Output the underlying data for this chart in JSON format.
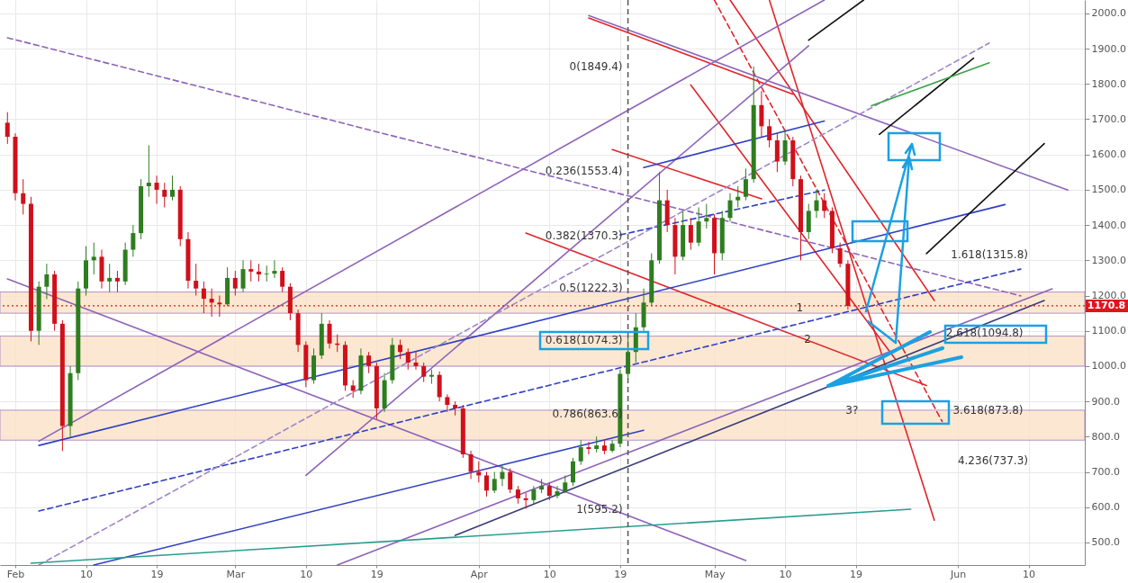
{
  "chart_data": {
    "type": "candlestick",
    "x": [
      "--01-31",
      "--02-01",
      "--02-02",
      "--02-03",
      "--02-04",
      "--02-05",
      "--02-06",
      "--02-07",
      "--02-08",
      "--02-09",
      "--02-10",
      "--02-11",
      "--02-12",
      "--02-13",
      "--02-14",
      "--02-15",
      "--02-16",
      "--02-17",
      "--02-18",
      "--02-19",
      "--02-20",
      "--02-21",
      "--02-22",
      "--02-23",
      "--02-24",
      "--02-25",
      "--02-26",
      "--02-27",
      "--02-28",
      "--03-01",
      "--03-02",
      "--03-03",
      "--03-04",
      "--03-05",
      "--03-06",
      "--03-07",
      "--03-08",
      "--03-09",
      "--03-10",
      "--03-11",
      "--03-12",
      "--03-13",
      "--03-14",
      "--03-15",
      "--03-16",
      "--03-17",
      "--03-18",
      "--03-19",
      "--03-20",
      "--03-21",
      "--03-22",
      "--03-23",
      "--03-24",
      "--03-25",
      "--03-26",
      "--03-27",
      "--03-28",
      "--03-29",
      "--03-30",
      "--03-31",
      "--04-01",
      "--04-02",
      "--04-03",
      "--04-04",
      "--04-05",
      "--04-06",
      "--04-07",
      "--04-08",
      "--04-09",
      "--04-10",
      "--04-11",
      "--04-12",
      "--04-13",
      "--04-14",
      "--04-15",
      "--04-16",
      "--04-17",
      "--04-18",
      "--04-19",
      "--04-20",
      "--04-21",
      "--04-22",
      "--04-23",
      "--04-24",
      "--04-25",
      "--04-26",
      "--04-27",
      "--04-28",
      "--04-29",
      "--04-30",
      "--05-01",
      "--05-02",
      "--05-03",
      "--05-04",
      "--05-05",
      "--05-06",
      "--05-07",
      "--05-08",
      "--05-09",
      "--05-10",
      "--05-11",
      "--05-12",
      "--05-13",
      "--05-14",
      "--05-15",
      "--05-16",
      "--05-17",
      "--05-18"
    ],
    "ohlc": [
      [
        1690,
        1720,
        1630,
        1650
      ],
      [
        1650,
        1660,
        1470,
        1490
      ],
      [
        1490,
        1530,
        1430,
        1460
      ],
      [
        1460,
        1480,
        1070,
        1100
      ],
      [
        1100,
        1240,
        1060,
        1225
      ],
      [
        1225,
        1290,
        1190,
        1260
      ],
      [
        1260,
        1270,
        1100,
        1120
      ],
      [
        1120,
        1130,
        759,
        830
      ],
      [
        830,
        1000,
        800,
        980
      ],
      [
        980,
        1240,
        960,
        1220
      ],
      [
        1220,
        1340,
        1200,
        1300
      ],
      [
        1300,
        1350,
        1260,
        1310
      ],
      [
        1310,
        1330,
        1220,
        1240
      ],
      [
        1240,
        1290,
        1210,
        1250
      ],
      [
        1250,
        1270,
        1210,
        1240
      ],
      [
        1240,
        1350,
        1230,
        1330
      ],
      [
        1330,
        1400,
        1310,
        1377
      ],
      [
        1377,
        1530,
        1360,
        1510
      ],
      [
        1510,
        1626,
        1480,
        1520
      ],
      [
        1520,
        1540,
        1460,
        1500
      ],
      [
        1500,
        1520,
        1450,
        1480
      ],
      [
        1480,
        1540,
        1470,
        1500
      ],
      [
        1500,
        1510,
        1340,
        1360
      ],
      [
        1360,
        1380,
        1220,
        1242
      ],
      [
        1242,
        1290,
        1200,
        1220
      ],
      [
        1220,
        1240,
        1150,
        1191
      ],
      [
        1191,
        1220,
        1140,
        1180
      ],
      [
        1180,
        1200,
        1140,
        1175
      ],
      [
        1175,
        1280,
        1170,
        1250
      ],
      [
        1250,
        1270,
        1200,
        1220
      ],
      [
        1220,
        1300,
        1210,
        1275
      ],
      [
        1275,
        1300,
        1240,
        1268
      ],
      [
        1268,
        1290,
        1240,
        1260
      ],
      [
        1260,
        1285,
        1240,
        1262
      ],
      [
        1262,
        1300,
        1250,
        1270
      ],
      [
        1270,
        1280,
        1210,
        1225
      ],
      [
        1225,
        1235,
        1130,
        1150
      ],
      [
        1150,
        1160,
        1040,
        1060
      ],
      [
        1060,
        1070,
        940,
        960
      ],
      [
        960,
        1050,
        950,
        1030
      ],
      [
        1030,
        1150,
        1020,
        1120
      ],
      [
        1120,
        1130,
        1050,
        1064
      ],
      [
        1064,
        1090,
        1040,
        1060
      ],
      [
        1060,
        1070,
        930,
        945
      ],
      [
        945,
        960,
        910,
        930
      ],
      [
        930,
        1050,
        920,
        1030
      ],
      [
        1030,
        1040,
        980,
        1000
      ],
      [
        1000,
        1010,
        850,
        880
      ],
      [
        880,
        980,
        870,
        960
      ],
      [
        960,
        1080,
        950,
        1060
      ],
      [
        1060,
        1075,
        1020,
        1040
      ],
      [
        1040,
        1050,
        990,
        1010
      ],
      [
        1010,
        1040,
        990,
        1000
      ],
      [
        1000,
        1010,
        955,
        970
      ],
      [
        970,
        990,
        950,
        975
      ],
      [
        975,
        985,
        900,
        912
      ],
      [
        912,
        920,
        870,
        890
      ],
      [
        890,
        900,
        860,
        880
      ],
      [
        880,
        890,
        740,
        750
      ],
      [
        750,
        760,
        680,
        700
      ],
      [
        700,
        730,
        670,
        690
      ],
      [
        690,
        700,
        630,
        647
      ],
      [
        647,
        700,
        640,
        680
      ],
      [
        680,
        720,
        660,
        700
      ],
      [
        700,
        710,
        640,
        650
      ],
      [
        650,
        660,
        610,
        625
      ],
      [
        625,
        640,
        595.2,
        620
      ],
      [
        620,
        660,
        610,
        650
      ],
      [
        650,
        680,
        640,
        660
      ],
      [
        660,
        670,
        620,
        632
      ],
      [
        632,
        660,
        625,
        645
      ],
      [
        645,
        690,
        640,
        670
      ],
      [
        670,
        740,
        660,
        730
      ],
      [
        730,
        790,
        720,
        770
      ],
      [
        770,
        785,
        750,
        765
      ],
      [
        765,
        800,
        755,
        775
      ],
      [
        775,
        790,
        750,
        760
      ],
      [
        760,
        790,
        755,
        780
      ],
      [
        780,
        990,
        770,
        978
      ],
      [
        978,
        1080,
        960,
        1040
      ],
      [
        1040,
        1150,
        1010,
        1110
      ],
      [
        1110,
        1220,
        1100,
        1180
      ],
      [
        1180,
        1320,
        1170,
        1300
      ],
      [
        1300,
        1550,
        1290,
        1470
      ],
      [
        1470,
        1500,
        1380,
        1400
      ],
      [
        1400,
        1420,
        1260,
        1310
      ],
      [
        1310,
        1440,
        1300,
        1400
      ],
      [
        1400,
        1420,
        1330,
        1350
      ],
      [
        1350,
        1450,
        1340,
        1410
      ],
      [
        1410,
        1460,
        1390,
        1420
      ],
      [
        1420,
        1430,
        1260,
        1320
      ],
      [
        1320,
        1440,
        1300,
        1420
      ],
      [
        1420,
        1490,
        1410,
        1470
      ],
      [
        1470,
        1510,
        1450,
        1480
      ],
      [
        1480,
        1560,
        1470,
        1530
      ],
      [
        1530,
        1849.4,
        1520,
        1740
      ],
      [
        1740,
        1780,
        1650,
        1680
      ],
      [
        1680,
        1700,
        1620,
        1640
      ],
      [
        1640,
        1660,
        1550,
        1580
      ],
      [
        1580,
        1670,
        1570,
        1640
      ],
      [
        1640,
        1650,
        1510,
        1530
      ],
      [
        1530,
        1540,
        1300,
        1380
      ],
      [
        1380,
        1460,
        1360,
        1440
      ],
      [
        1440,
        1500,
        1420,
        1470
      ],
      [
        1470,
        1490,
        1420,
        1440
      ],
      [
        1440,
        1450,
        1320,
        1334
      ],
      [
        1334,
        1350,
        1280,
        1290
      ],
      [
        1290,
        1300,
        1160,
        1170.8
      ]
    ],
    "series": [
      {
        "type": "line",
        "color": "#8e63b8",
        "line_style": "dashed",
        "x": [
          "--01-31",
          "--06-09"
        ],
        "values": [
          1931,
          1199
        ]
      },
      {
        "type": "line",
        "color": "#e0252b",
        "x": [
          "--04-15",
          "--05-11"
        ],
        "values": [
          1987,
          1771
        ]
      },
      {
        "type": "line",
        "color": "#e0252b",
        "x": [
          "--04-18",
          "--05-07"
        ],
        "values": [
          1614,
          1474
        ]
      },
      {
        "type": "line",
        "color": "#e0252b",
        "x": [
          "--04-07",
          "--05-28"
        ],
        "values": [
          1377,
          945
        ]
      },
      {
        "type": "line",
        "color": "#e0252b",
        "line_style": "dashed",
        "x": [
          "--05-01",
          "--05-30"
        ],
        "values": [
          2038,
          843
        ]
      },
      {
        "type": "line",
        "color": "#e0252b",
        "x": [
          "--05-03",
          "--05-29"
        ],
        "values": [
          2038,
          1186
        ]
      },
      {
        "type": "line",
        "color": "#e0252b",
        "x": [
          "--05-08",
          "--05-29"
        ],
        "values": [
          2038,
          563
        ]
      },
      {
        "type": "line",
        "color": "#e0252b",
        "x": [
          "--04-28",
          "--05-24"
        ],
        "values": [
          1797,
          1021
        ]
      },
      {
        "type": "line",
        "color": "#8e63b8",
        "x": [
          "--04-15",
          "--06-15"
        ],
        "values": [
          1994,
          1499
        ]
      },
      {
        "type": "line",
        "color": "#8e63b8",
        "x": [
          "--02-04",
          "--05-15"
        ],
        "values": [
          787,
          2038
        ]
      },
      {
        "type": "line",
        "color": "#8e63b8",
        "x": [
          "--01-31",
          "--05-05"
        ],
        "values": [
          1247,
          449
        ]
      },
      {
        "type": "line",
        "color": "#8e63b8",
        "x": [
          "--03-10",
          "--05-13"
        ],
        "values": [
          690,
          1908
        ]
      },
      {
        "type": "line",
        "color": "#3b3b7a",
        "x": [
          "--03-29",
          "--06-12"
        ],
        "values": [
          520,
          1186
        ]
      },
      {
        "type": "line",
        "color": "#8e63b8",
        "x": [
          "--03-14",
          "--06-13"
        ],
        "values": [
          436,
          1219
        ]
      },
      {
        "type": "line",
        "color": "#2f3fc4",
        "x": [
          "--02-04",
          "--06-07"
        ],
        "values": [
          775,
          1458
        ]
      },
      {
        "type": "line",
        "color": "#2f3fc4",
        "x": [
          "--02-11",
          "--04-22"
        ],
        "values": [
          436,
          818
        ]
      },
      {
        "type": "line",
        "color": "#2f3fc4",
        "x": [
          "--04-22",
          "--05-15"
        ],
        "values": [
          1563,
          1695
        ]
      },
      {
        "type": "line",
        "color": "#2f3fc4",
        "line_style": "dashed",
        "x": [
          "--02-04",
          "--06-09"
        ],
        "values": [
          589,
          1275
        ]
      },
      {
        "type": "line",
        "color": "#2f3fc4",
        "line_style": "dashed",
        "x": [
          "--04-19",
          "--05-15"
        ],
        "values": [
          1372,
          1499
        ]
      },
      {
        "type": "line",
        "color": "#9e86c8",
        "line_style": "dashed",
        "x": [
          "--02-04",
          "--06-05"
        ],
        "values": [
          436,
          1916
        ]
      },
      {
        "type": "line",
        "color": "#111111",
        "x": [
          "--05-13",
          "--05-20"
        ],
        "values": [
          1924,
          2038
        ]
      },
      {
        "type": "line",
        "color": "#111111",
        "x": [
          "--05-22",
          "--06-03"
        ],
        "values": [
          1657,
          1873
        ]
      },
      {
        "type": "line",
        "color": "#111111",
        "x": [
          "--05-28",
          "--06-12"
        ],
        "values": [
          1319,
          1631
        ]
      },
      {
        "type": "line",
        "color": "#3aa346",
        "x": [
          "--05-21",
          "--06-05"
        ],
        "values": [
          1738,
          1860
        ]
      },
      {
        "type": "line",
        "color": "#2a9d8f",
        "x": [
          "--02-03",
          "--05-26"
        ],
        "values": [
          441,
          594
        ]
      }
    ],
    "bands": [
      {
        "axis": "y",
        "from": 1150,
        "to": 1210,
        "color": "#fbe1c4"
      },
      {
        "axis": "y",
        "from": 1000,
        "to": 1085,
        "color": "#fbe1c4"
      },
      {
        "axis": "y",
        "from": 790,
        "to": 875,
        "color": "#fbe1c4"
      }
    ],
    "ref_lines": [
      {
        "axis": "y",
        "value": 1170.8,
        "label": "1170.8",
        "color": "#e0151b",
        "line_style": "dotted"
      },
      {
        "axis": "x",
        "value": "--04-20",
        "color": "#555555",
        "line_style": "dashed"
      }
    ],
    "annotations": [
      {
        "text": "0(1849.4)",
        "x": "--04-20",
        "y": 1849.4
      },
      {
        "text": "0.236(1553.4)",
        "x": "--04-20",
        "y": 1553.4
      },
      {
        "text": "0.382(1370.3)",
        "x": "--04-20",
        "y": 1370.3
      },
      {
        "text": "0.5(1222.3)",
        "x": "--04-20",
        "y": 1222.3
      },
      {
        "text": "0.618(1074.3)",
        "x": "--04-20",
        "y": 1074.3
      },
      {
        "text": "0.786(863.6)",
        "x": "--04-20",
        "y": 863.6
      },
      {
        "text": "1(595.2)",
        "x": "--04-20",
        "y": 595.2
      },
      "1.618(1315.8)",
      {
        "text": "2.618(1094.8)",
        "x": "--06-10",
        "y": 1094.8
      },
      {
        "text": "3.618(873.8)",
        "x": "--06-10",
        "y": 873.8
      },
      "4.236(737.3)",
      {
        "text": "1",
        "x": "--05-13",
        "y": 1166
      },
      {
        "text": "2",
        "x": "--05-14",
        "y": 1077
      },
      {
        "text": "3?",
        "x": "--05-20",
        "y": 874
      }
    ],
    "xlim": [
      "--01-30T15:00",
      "--06-16T14:00"
    ],
    "xticks": [
      {
        "value": "--02-01",
        "label": "Feb"
      },
      {
        "value": "--02-10",
        "label": "10"
      },
      {
        "value": "--02-19",
        "label": "19"
      },
      {
        "value": "--03-01",
        "label": "Mar"
      },
      {
        "value": "--03-10",
        "label": "10"
      },
      {
        "value": "--03-19",
        "label": "19"
      },
      {
        "value": "--04-01",
        "label": "Apr"
      },
      {
        "value": "--04-10",
        "label": "10"
      },
      {
        "value": "--04-19",
        "label": "19"
      },
      {
        "value": "--05-01",
        "label": "May"
      },
      {
        "value": "--05-10",
        "label": "10"
      },
      {
        "value": "--05-19",
        "label": "19"
      },
      {
        "value": "--06-01",
        "label": "Jun"
      },
      {
        "value": "--06-10",
        "label": "10"
      }
    ],
    "ylim": [
      436,
      2038
    ],
    "yticks": [
      {
        "value": 500,
        "label": "500.0"
      },
      {
        "value": 600,
        "label": "600.0"
      },
      {
        "value": 700,
        "label": "700.0"
      },
      {
        "value": 800,
        "label": "800.0"
      },
      {
        "value": 900,
        "label": "900.0"
      },
      {
        "value": 1000,
        "label": "1000.0"
      },
      {
        "value": 1100,
        "label": "1100.0"
      },
      {
        "value": 1200,
        "label": "1200.0"
      },
      {
        "value": 1300,
        "label": "1300.0"
      },
      {
        "value": 1400,
        "label": "1400.0"
      },
      {
        "value": 1500,
        "label": "1500.0"
      },
      {
        "value": 1600,
        "label": "1600.0"
      },
      {
        "value": 1700,
        "label": "1700.0"
      },
      {
        "value": 1800,
        "label": "1800.0"
      },
      {
        "value": 1900,
        "label": "1900.0"
      },
      {
        "value": 2000,
        "label": "2000.0"
      }
    ],
    "grid": true
  }
}
